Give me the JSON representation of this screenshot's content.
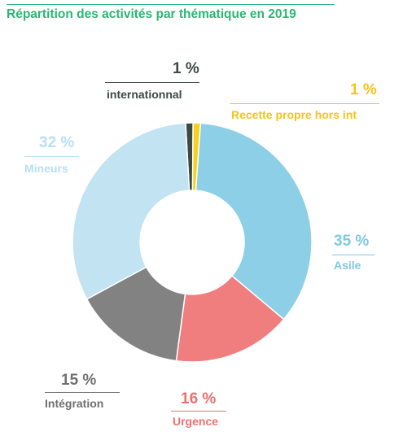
{
  "title": "Répartition des activités par thématique en 2019",
  "chart_data": {
    "type": "pie",
    "title": "Répartition des activités par thématique en 2019",
    "slices": [
      {
        "label": "internationnal",
        "value": 1,
        "pct_label": "1 %",
        "color": "#3d4a43"
      },
      {
        "label": "Recette propre hors int",
        "value": 1,
        "pct_label": "1 %",
        "color": "#f4d21f"
      },
      {
        "label": "Asile",
        "value": 35,
        "pct_label": "35 %",
        "color": "#8dcfe6"
      },
      {
        "label": "Urgence",
        "value": 16,
        "pct_label": "16 %",
        "color": "#f07e7e"
      },
      {
        "label": "Intégration",
        "value": 15,
        "pct_label": "15 %",
        "color": "#828282"
      },
      {
        "label": "Mineurs",
        "value": 32,
        "pct_label": "32 %",
        "color": "#c2e3f2"
      }
    ],
    "label_colors": {
      "internationnal": "#3d4a43",
      "Recette propre hors int": "#f4c419",
      "Asile": "#7ec8e3",
      "Urgence": "#ef6f6f",
      "Intégration": "#6f6f6f",
      "Mineurs": "#b9dff0"
    }
  }
}
